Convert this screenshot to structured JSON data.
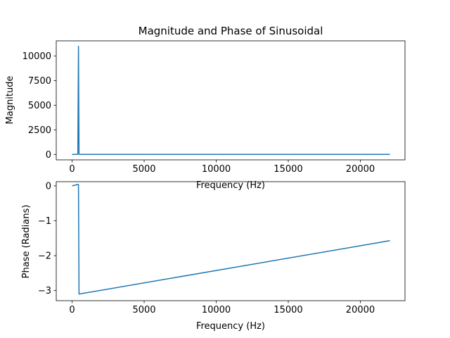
{
  "chart_data": [
    {
      "type": "line",
      "title": "Magnitude and Phase of Sinusoidal",
      "xlabel": "Frequency (Hz)",
      "ylabel": "Magnitude",
      "xlim": [
        -1100,
        23100
      ],
      "ylim": [
        -550,
        11550
      ],
      "xticks": [
        0,
        5000,
        10000,
        15000,
        20000
      ],
      "xtick_labels": [
        "0",
        "5000",
        "10000",
        "15000",
        "20000"
      ],
      "yticks": [
        0,
        2500,
        5000,
        7500,
        10000
      ],
      "ytick_labels": [
        "0",
        "2500",
        "5000",
        "7500",
        "10000"
      ],
      "grid": false,
      "line_color": "#1f77b4",
      "series": [
        {
          "x": [
            0,
            350,
            400,
            440,
            480,
            530,
            22050
          ],
          "y": [
            0,
            0,
            30,
            11000,
            30,
            0,
            0
          ]
        }
      ]
    },
    {
      "type": "line",
      "title": "",
      "xlabel": "Frequency (Hz)",
      "ylabel": "Phase (Radians)",
      "xlim": [
        -1100,
        23100
      ],
      "ylim": [
        -3.29,
        0.12
      ],
      "xticks": [
        0,
        5000,
        10000,
        15000,
        20000
      ],
      "xtick_labels": [
        "0",
        "5000",
        "10000",
        "15000",
        "20000"
      ],
      "yticks": [
        0,
        -1,
        -2,
        -3
      ],
      "ytick_labels": [
        "0",
        "−1",
        "−2",
        "−3"
      ],
      "grid": false,
      "line_color": "#1f77b4",
      "series": [
        {
          "x": [
            0,
            400,
            440,
            480,
            22050
          ],
          "y": [
            0,
            0.04,
            0.04,
            -3.1,
            -1.57
          ]
        }
      ]
    }
  ]
}
